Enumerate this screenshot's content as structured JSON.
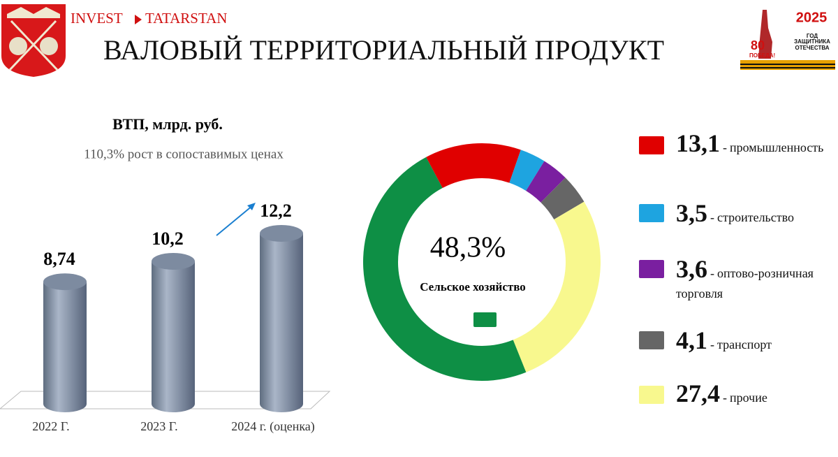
{
  "header": {
    "brand_left": "INVEST",
    "brand_right": "TATARSTAN",
    "title": "ВАЛОВЫЙ ТЕРРИТОРИАЛЬНЫЙ ПРОДУКТ",
    "badge_year": "2025",
    "badge_text": "ГОД ЗАЩИТНИКА ОТЕЧЕСТВА",
    "badge_80": "80",
    "badge_victory": "ПОБЕДА!"
  },
  "chart_data": [
    {
      "type": "bar",
      "title": "ВТП, млрд. руб.",
      "subtitle": "110,3% рост в сопоставимых ценах",
      "categories": [
        "2022 Г.",
        "2023 Г.",
        "2024 г. (оценка)"
      ],
      "values": [
        8.74,
        10.2,
        12.2
      ],
      "value_labels": [
        "8,74",
        "10,2",
        "12,2"
      ],
      "color": "#8e9db3"
    },
    {
      "type": "pie",
      "categories": [
        "промышленность",
        "строительство",
        "оптово-розничная торговля",
        "транспорт",
        "прочие",
        "Сельское хозяйство"
      ],
      "values": [
        13.1,
        3.5,
        3.6,
        4.1,
        27.4,
        48.3
      ],
      "value_labels": [
        "13,1",
        "3,5",
        "3,6",
        "4,1",
        "27,4",
        "48,3%"
      ],
      "colors": [
        "#e00000",
        "#1ea4e0",
        "#7a1fa0",
        "#666666",
        "#f8f88e",
        "#0e8f45"
      ],
      "legend_separator": "-"
    }
  ]
}
